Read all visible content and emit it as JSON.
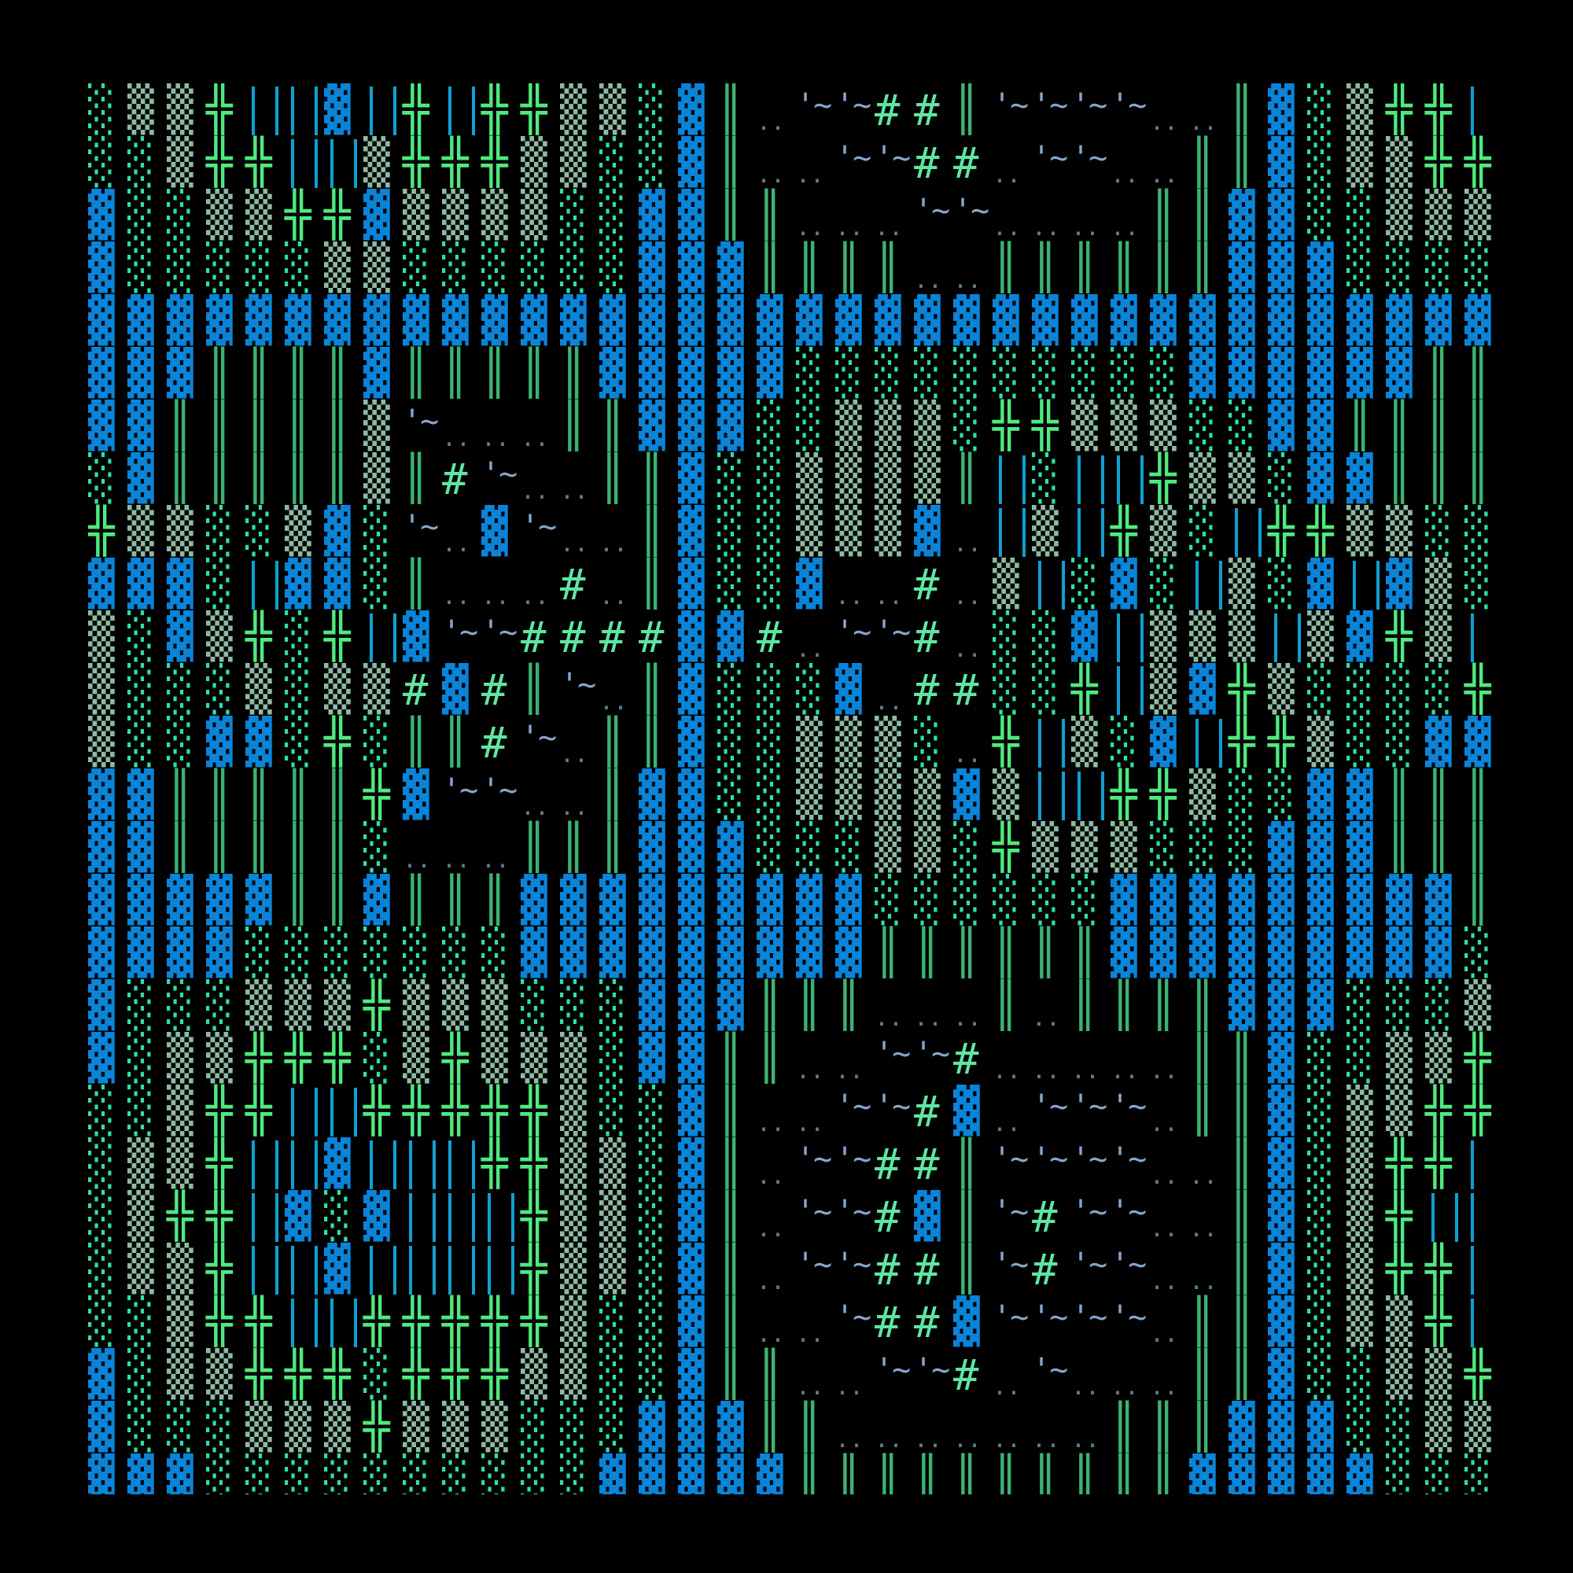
{
  "tiles": {
    "B": {
      "glyph": "▓",
      "color": "#0a84d8",
      "name": "dark-shade-block-tile"
    },
    "l": {
      "glyph": "░",
      "color": "#2fe0a6",
      "name": "light-shade-tile"
    },
    "m": {
      "glyph": "▒",
      "color": "#8cbba2",
      "name": "medium-shade-tile"
    },
    "+": {
      "glyph": "╬",
      "color": "#4eea7e",
      "name": "double-cross-tile"
    },
    "H": {
      "glyph": "║",
      "color": "#3cb371",
      "name": "double-vertical-tile"
    },
    "c": {
      "glyph": "",
      "color": "#0fa0d0",
      "name": "cyan-bars-tile"
    },
    "~": {
      "glyph": "'~",
      "color": "#86a6cc",
      "name": "water-tile"
    },
    ".": {
      "glyph": "..",
      "color": "#5f7f8f",
      "name": "floor-dots-tile"
    },
    "#": {
      "glyph": "#",
      "color": "#5ee6a0",
      "name": "hash-tile"
    },
    " ": {
      "glyph": "",
      "color": "#000000",
      "name": "empty-tile"
    }
  },
  "rows": [
    "lmm+ccBc+c++mmlBH.~~##H~~~~..HBlm++cc",
    "llm++ccm+++mmllBH..~~##.~~..HHBlmm++c",
    "Bllmm++BmmmmllBBHH...~~....HHBBllmmml",
    "BlllllmmllllllBBBHHHH..HHHHHHBBBllllm",
    "BBBBBBBBBBBBBBBBBBBBBBBBBBBBBBBBBBBBB",
    "BBBHHHHBHHHHHBBBBBllllllllllBBBBBBHH ",
    "BBHHHHHm~...HHBBBllmmml++mmmllBBHHHH ",
    "lBHHHHHmH#~..HHBllmmmmHclcc+mmlBBHHH ",
    "+mmllmBl~.B~..HBllmmmB.cmc+mlc++mmlll",
    "BBBlcBBlH...#.HBllB..#.mclBlcmlBcBmlc",
    "mlBm+l+cB~~####BB#.~~#.llBcmmmcmB+mcc",
    "mlllmlmm#B#H~.HBlllB.##ll+cmB+mllll+l",
    "mllBBl+lHH#~.HHBllmmml.+cmlBc++mllBBl",
    "BBHHHHH+B~~..HBBllmmmmBmcc++mllBBHHH ",
    "BBHHHHHl...HHHBBBlllmml+mmmlllBBBHHH ",
    "BBBBBHHBHHHBBBBBBBBBllllllBBBBBBBBBH ",
    "BBBBlllllllBBBBBBBBBHHHHHHBBBBBBBBBll",
    "Blllmmm+mmmlllBBBHHH...H.HHHHBBBlllmm",
    "Blmm+++lm+mmmlBBHH..~~#.....HHBllmm+l",
    "llm++cc+++++mllBH..~~#B.~~~.HHBlmm++c",
    "lmm+ccBccc++mmlBH.~~##H~~~~..HBlm++cc",
    "lm++cBlBccc+mmlBH.~~#BH~#~~..HBlm+ccc",
    "lmm+ccBcccc+mmlBH.~~##H~#~~..HBlm++cc",
    "llm++cc+++++mllBH..~##B~~~~.HHBlmm+cc",
    "Blmm+++l+++mmllBHH..~~#.~...HHBllmm+l",
    "Blllmmm+mmmlllBBBHH.......HHHBBBllmmm",
    "BBBllllllllllBBBBBHHHHHHHHHHBBBBBllll"
  ]
}
